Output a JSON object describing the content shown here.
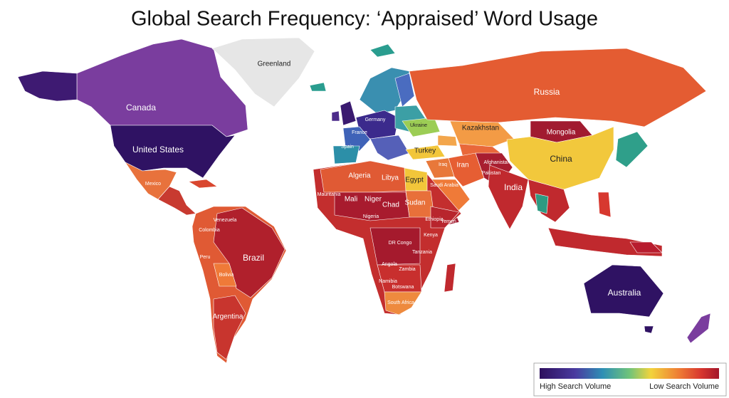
{
  "title": "Global Search Frequency: ‘Appraised’ Word Usage",
  "countries": [
    {
      "label": "Greenland"
    },
    {
      "label": "Canada"
    },
    {
      "label": "United States"
    },
    {
      "label": "Mexico"
    },
    {
      "label": "Russia"
    },
    {
      "label": "Kazakhstan"
    },
    {
      "label": "Mongolia"
    },
    {
      "label": "China"
    },
    {
      "label": "Ukraine"
    },
    {
      "label": "Germany"
    },
    {
      "label": "France"
    },
    {
      "label": "Spain"
    },
    {
      "label": "Turkey"
    },
    {
      "label": "Iran"
    },
    {
      "label": "Afghanistan"
    },
    {
      "label": "Pakistan"
    },
    {
      "label": "India"
    },
    {
      "label": "Algeria"
    },
    {
      "label": "Libya"
    },
    {
      "label": "Egypt"
    },
    {
      "label": "Mauritania"
    },
    {
      "label": "Mali"
    },
    {
      "label": "Niger"
    },
    {
      "label": "Chad"
    },
    {
      "label": "Sudan"
    },
    {
      "label": "Nigeria"
    },
    {
      "label": "Ethiopia"
    },
    {
      "label": "Kenya"
    },
    {
      "label": "DR Congo"
    },
    {
      "label": "Tanzania"
    },
    {
      "label": "Angola"
    },
    {
      "label": "Zambia"
    },
    {
      "label": "Namibia"
    },
    {
      "label": "Botswana"
    },
    {
      "label": "South Africa"
    },
    {
      "label": "Saudi Arabia"
    },
    {
      "label": "Yemen"
    },
    {
      "label": "Iraq"
    },
    {
      "label": "Venezuela"
    },
    {
      "label": "Colombia"
    },
    {
      "label": "Peru"
    },
    {
      "label": "Brazil"
    },
    {
      "label": "Bolivia"
    },
    {
      "label": "Argentina"
    },
    {
      "label": "Australia"
    }
  ],
  "legend": {
    "high_label": "High Search Volume",
    "low_label": "Low Search Volume"
  }
}
